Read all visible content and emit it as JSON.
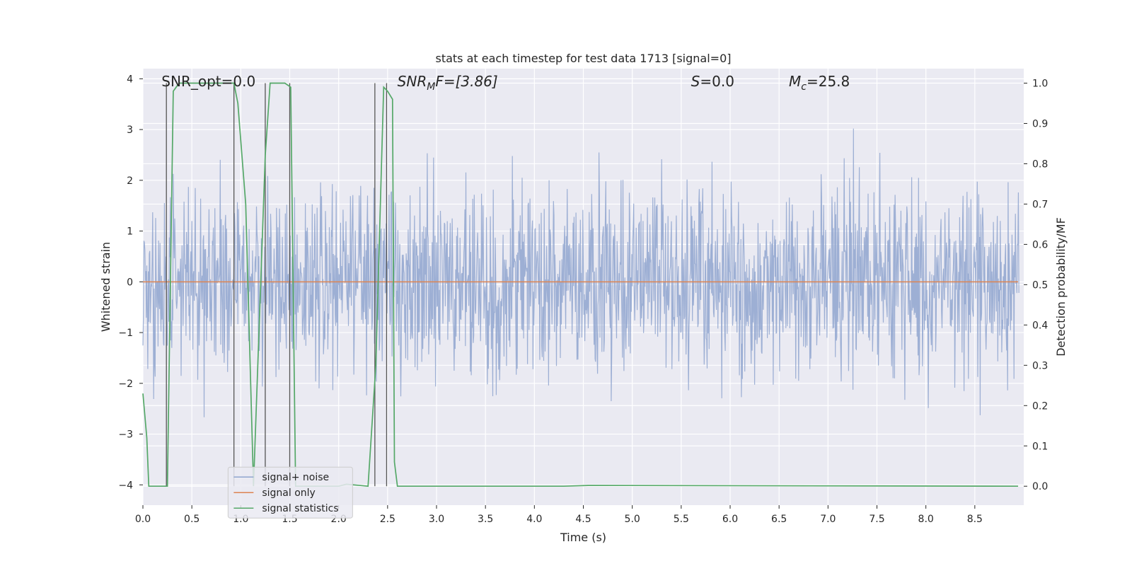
{
  "chart_data": {
    "type": "line",
    "title": "stats at each timestep for test data 1713 [signal=0]",
    "xlabel": "Time (s)",
    "ylabel_left": "Whitened strain",
    "ylabel_right": "Detection probability/MF",
    "xlim": [
      0.0,
      9.0
    ],
    "ylim_left": [
      -4.4,
      4.2
    ],
    "ylim_right": [
      -0.047,
      1.036
    ],
    "xticks": [
      "0.0",
      "0.5",
      "1.0",
      "1.5",
      "2.0",
      "2.5",
      "3.0",
      "3.5",
      "4.0",
      "4.5",
      "5.0",
      "5.5",
      "6.0",
      "6.5",
      "7.0",
      "7.5",
      "8.0",
      "8.5"
    ],
    "yticks_left": [
      "−4",
      "−3",
      "−2",
      "−1",
      "0",
      "1",
      "2",
      "3",
      "4"
    ],
    "yticks_right": [
      "0.0",
      "0.1",
      "0.2",
      "0.3",
      "0.4",
      "0.5",
      "0.6",
      "0.7",
      "0.8",
      "0.9",
      "1.0"
    ],
    "grid": true,
    "legend_position": "lower-left",
    "annotations": {
      "snr_opt": "SNR_opt=0.0",
      "snr_mf_main": "SNR",
      "snr_mf_sub": "M",
      "snr_mf_tail": "F=[3.86]",
      "s_main": "S",
      "s_tail": "=0.0",
      "mc_main": "M",
      "mc_sub": "c",
      "mc_tail": "=25.8"
    },
    "series": [
      {
        "name": "signal+ noise",
        "color": "#8fa5cf",
        "axis": "left",
        "kind": "noise",
        "sample_spacing_s": 0.005,
        "typical_envelope": [
          -1.7,
          1.7
        ],
        "peak_envelope": [
          -3.7,
          3.6
        ]
      },
      {
        "name": "signal only",
        "color": "#dd8452",
        "axis": "left",
        "x": [
          0.0,
          9.0
        ],
        "y": [
          0.0,
          0.0
        ]
      },
      {
        "name": "signal statistics",
        "color": "#55a868",
        "axis": "right",
        "x": [
          0.0,
          0.04,
          0.06,
          0.25,
          0.31,
          0.37,
          0.93,
          0.97,
          1.05,
          1.13,
          1.25,
          1.3,
          1.45,
          1.51,
          1.56,
          1.6,
          2.0,
          2.08,
          2.3,
          2.38,
          2.46,
          2.5,
          2.55,
          2.57,
          2.6,
          4.3,
          4.55,
          9.0
        ],
        "y": [
          0.23,
          0.12,
          0.0,
          0.0,
          0.98,
          1.0,
          1.0,
          0.95,
          0.7,
          0.0,
          0.82,
          1.0,
          1.0,
          0.99,
          0.0,
          0.0,
          0.0,
          0.005,
          0.0,
          0.3,
          0.99,
          0.98,
          0.96,
          0.06,
          0.0,
          0.0,
          0.002,
          0.0
        ]
      }
    ],
    "vertical_markers_s": [
      0.24,
      0.93,
      1.25,
      1.5,
      2.37,
      2.49
    ],
    "legend": [
      "signal+ noise",
      "signal only",
      "signal statistics"
    ]
  }
}
